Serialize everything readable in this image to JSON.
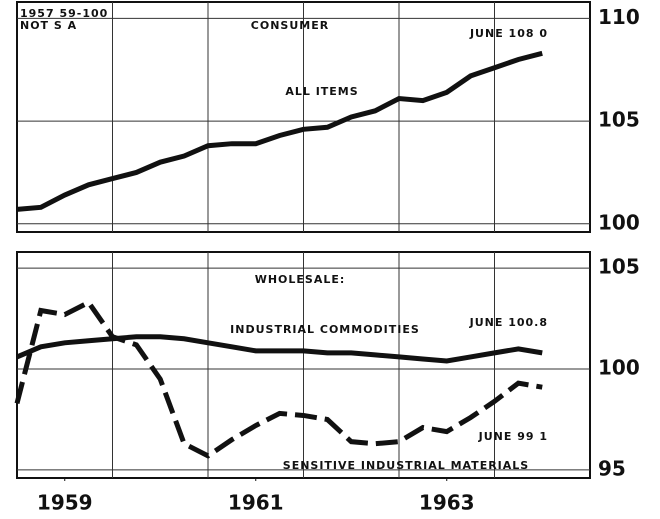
{
  "chart_data": [
    {
      "type": "line",
      "annotations": [
        "1957 59-100",
        "NOT S A",
        "CONSUMER",
        "JUNE 108 0"
      ],
      "x": [
        1959.0,
        1959.25,
        1959.5,
        1959.75,
        1960.0,
        1960.25,
        1960.5,
        1960.75,
        1961.0,
        1961.25,
        1961.5,
        1961.75,
        1962.0,
        1962.25,
        1962.5,
        1962.75,
        1963.0,
        1963.25,
        1963.5,
        1963.75,
        1964.0,
        1964.25,
        1964.5
      ],
      "series": [
        {
          "name": "ALL ITEMS",
          "color": "#111111",
          "style": "solid",
          "values": [
            100.7,
            100.8,
            101.4,
            101.9,
            102.2,
            102.5,
            103.0,
            103.3,
            103.8,
            103.9,
            103.9,
            104.3,
            104.6,
            104.7,
            105.2,
            105.5,
            106.1,
            106.0,
            106.4,
            107.2,
            107.6,
            108.0,
            108.3
          ]
        }
      ],
      "xlim": [
        1959,
        1965
      ],
      "ylim": [
        99.6,
        110.8
      ],
      "yticks": [
        100,
        105,
        110
      ],
      "xgrid": [
        1960,
        1961,
        1962,
        1963,
        1964
      ],
      "grid": true
    },
    {
      "type": "line",
      "annotations": [
        "WHOLESALE:",
        "JUNE 100.8",
        "JUNE 99 1"
      ],
      "x": [
        1959.0,
        1959.25,
        1959.5,
        1959.75,
        1960.0,
        1960.25,
        1960.5,
        1960.75,
        1961.0,
        1961.25,
        1961.5,
        1961.75,
        1962.0,
        1962.25,
        1962.5,
        1962.75,
        1963.0,
        1963.25,
        1963.5,
        1963.75,
        1964.0,
        1964.25,
        1964.5
      ],
      "series": [
        {
          "name": "INDUSTRIAL COMMODITIES",
          "color": "#111111",
          "style": "solid",
          "values": [
            100.6,
            101.1,
            101.3,
            101.4,
            101.5,
            101.6,
            101.6,
            101.5,
            101.3,
            101.1,
            100.9,
            100.9,
            100.9,
            100.8,
            100.8,
            100.7,
            100.6,
            100.5,
            100.4,
            100.6,
            100.8,
            101.0,
            100.8
          ]
        },
        {
          "name": "SENSITIVE INDUSTRIAL MATERIALS",
          "color": "#111111",
          "style": "dashed",
          "values": [
            98.3,
            102.9,
            102.7,
            103.3,
            101.6,
            101.2,
            99.5,
            96.3,
            95.7,
            96.5,
            97.2,
            97.8,
            97.7,
            97.5,
            96.4,
            96.3,
            96.4,
            97.1,
            96.9,
            97.6,
            98.4,
            99.3,
            99.1
          ]
        }
      ],
      "xlim": [
        1959,
        1965
      ],
      "ylim": [
        94.6,
        105.8
      ],
      "yticks": [
        95,
        100,
        105
      ],
      "xticks": [
        {
          "value": 1959.5,
          "label": "1959"
        },
        {
          "value": 1961.5,
          "label": "1961"
        },
        {
          "value": 1963.5,
          "label": "1963"
        }
      ],
      "xgrid": [
        1960,
        1961,
        1962,
        1963,
        1964
      ],
      "grid": true
    }
  ]
}
